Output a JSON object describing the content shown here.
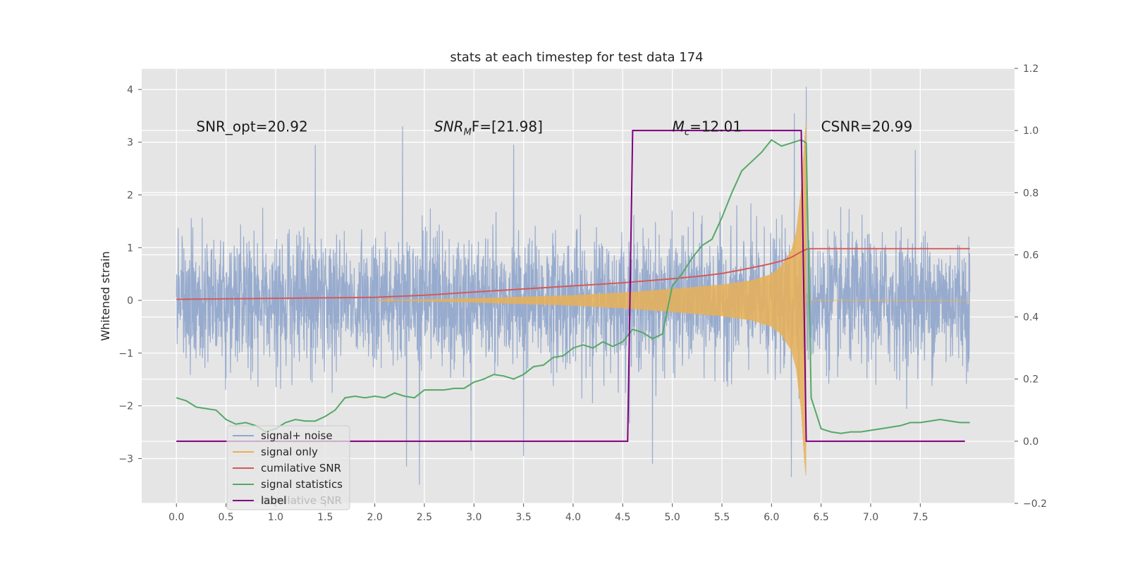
{
  "chart_data": {
    "type": "line",
    "title": "stats at each timestep for test data 174",
    "ylabel": "Whitened strain",
    "xlabel": "",
    "xlim": [
      -0.35,
      8.45
    ],
    "ylim": [
      -3.85,
      4.4
    ],
    "y2lim": [
      -0.2,
      1.2
    ],
    "x_ticks": [
      0.0,
      0.5,
      1.0,
      1.5,
      2.0,
      2.5,
      3.0,
      3.5,
      4.0,
      4.5,
      5.0,
      5.5,
      6.0,
      6.5,
      7.0,
      7.5
    ],
    "x_tick_labels": [
      "0.0",
      "0.5",
      "1.0",
      "1.5",
      "2.0",
      "2.5",
      "3.0",
      "3.5",
      "4.0",
      "4.5",
      "5.0",
      "5.5",
      "6.0",
      "6.5",
      "7.0",
      "7.5"
    ],
    "y_ticks": [
      -3,
      -2,
      -1,
      0,
      1,
      2,
      3,
      4
    ],
    "y_tick_labels": [
      "−3",
      "−2",
      "−1",
      "0",
      "1",
      "2",
      "3",
      "4"
    ],
    "y2_ticks": [
      -0.2,
      0.0,
      0.2,
      0.4,
      0.6,
      0.8,
      1.0,
      1.2
    ],
    "y2_tick_labels": [
      "−0.2",
      "0.0",
      "0.2",
      "0.4",
      "0.6",
      "0.8",
      "1.0",
      "1.2"
    ],
    "grid": true,
    "legend_placement": "lower-left",
    "annotations": [
      {
        "text": "SNR_opt=20.92",
        "x": 0.2,
        "y": 3.3
      },
      {
        "text_main": "SNR",
        "text_sub": "M",
        "text_tail": "F=[21.98]",
        "x": 2.6,
        "y": 3.3
      },
      {
        "text_main": "M",
        "text_sub": "c",
        "text_tail": "=12.01",
        "x": 5.0,
        "y": 3.3
      },
      {
        "text": "CSNR=20.99",
        "x": 6.5,
        "y": 3.3
      }
    ],
    "series": [
      {
        "name": "signal+ noise",
        "axis": "left",
        "color": "#92a8cc",
        "style": "noise",
        "x_range": [
          0.0,
          8.0
        ],
        "typical_amplitude": 1.4,
        "extremes": [
          [
            2.28,
            3.3
          ],
          [
            2.45,
            -3.5
          ],
          [
            2.32,
            -3.15
          ],
          [
            6.35,
            4.05
          ],
          [
            6.23,
            3.55
          ],
          [
            6.2,
            -3.35
          ],
          [
            4.8,
            -3.1
          ],
          [
            3.4,
            2.95
          ],
          [
            1.4,
            2.95
          ],
          [
            2.97,
            -2.85
          ],
          [
            3.5,
            -2.95
          ],
          [
            7.45,
            2.85
          ]
        ]
      },
      {
        "name": "signal only",
        "axis": "left",
        "color": "#e8b056",
        "style": "chirp",
        "x_range": [
          2.0,
          8.0
        ],
        "merger_x": 6.35,
        "envelope": [
          [
            2.0,
            0.0
          ],
          [
            3.0,
            0.04
          ],
          [
            4.0,
            0.1
          ],
          [
            4.5,
            0.15
          ],
          [
            5.0,
            0.22
          ],
          [
            5.5,
            0.3
          ],
          [
            5.8,
            0.38
          ],
          [
            6.0,
            0.5
          ],
          [
            6.1,
            0.65
          ],
          [
            6.2,
            0.95
          ],
          [
            6.25,
            1.3
          ],
          [
            6.3,
            2.1
          ],
          [
            6.33,
            3.0
          ],
          [
            6.35,
            3.4
          ]
        ]
      },
      {
        "name": "cumilative SNR",
        "axis": "right",
        "color": "#d25a5a",
        "x": [
          0.0,
          1.0,
          2.0,
          2.5,
          3.0,
          3.5,
          4.0,
          4.5,
          5.0,
          5.3,
          5.5,
          5.7,
          5.9,
          6.0,
          6.1,
          6.2,
          6.3,
          6.37,
          6.4,
          8.0
        ],
        "y": [
          0.457,
          0.46,
          0.463,
          0.47,
          0.48,
          0.49,
          0.5,
          0.51,
          0.523,
          0.532,
          0.54,
          0.552,
          0.565,
          0.572,
          0.58,
          0.592,
          0.61,
          0.62,
          0.62,
          0.62
        ]
      },
      {
        "name": "signal statistics",
        "axis": "right",
        "color": "#55a868",
        "x": [
          0.0,
          0.1,
          0.2,
          0.3,
          0.4,
          0.5,
          0.6,
          0.7,
          0.8,
          0.9,
          1.0,
          1.1,
          1.2,
          1.3,
          1.4,
          1.5,
          1.6,
          1.7,
          1.8,
          1.9,
          2.0,
          2.1,
          2.2,
          2.3,
          2.4,
          2.5,
          2.6,
          2.7,
          2.8,
          2.9,
          3.0,
          3.1,
          3.2,
          3.3,
          3.4,
          3.5,
          3.6,
          3.7,
          3.8,
          3.9,
          4.0,
          4.1,
          4.2,
          4.3,
          4.4,
          4.5,
          4.6,
          4.7,
          4.8,
          4.9,
          5.0,
          5.1,
          5.2,
          5.3,
          5.4,
          5.5,
          5.6,
          5.7,
          5.8,
          5.9,
          6.0,
          6.1,
          6.2,
          6.3,
          6.35,
          6.4,
          6.5,
          6.6,
          6.7,
          6.8,
          6.9,
          7.0,
          7.1,
          7.2,
          7.3,
          7.4,
          7.5,
          7.6,
          7.7,
          7.8,
          7.9,
          8.0
        ],
        "y": [
          0.14,
          0.13,
          0.11,
          0.105,
          0.1,
          0.07,
          0.055,
          0.06,
          0.05,
          0.03,
          0.04,
          0.06,
          0.07,
          0.065,
          0.065,
          0.08,
          0.1,
          0.14,
          0.145,
          0.14,
          0.145,
          0.14,
          0.155,
          0.145,
          0.14,
          0.165,
          0.165,
          0.165,
          0.17,
          0.17,
          0.19,
          0.2,
          0.215,
          0.21,
          0.2,
          0.215,
          0.24,
          0.245,
          0.27,
          0.275,
          0.3,
          0.31,
          0.3,
          0.32,
          0.305,
          0.32,
          0.36,
          0.35,
          0.33,
          0.345,
          0.5,
          0.54,
          0.59,
          0.63,
          0.65,
          0.72,
          0.8,
          0.87,
          0.9,
          0.93,
          0.97,
          0.95,
          0.96,
          0.97,
          0.96,
          0.14,
          0.04,
          0.03,
          0.025,
          0.03,
          0.03,
          0.035,
          0.04,
          0.045,
          0.05,
          0.06,
          0.06,
          0.065,
          0.07,
          0.065,
          0.06,
          0.06
        ]
      },
      {
        "name": "label",
        "axis": "right",
        "color": "#800080",
        "x": [
          0.0,
          4.55,
          4.6,
          6.3,
          6.35,
          7.95
        ],
        "y": [
          0.0,
          0.0,
          1.0,
          1.0,
          0.0,
          0.0
        ]
      }
    ],
    "legend_overlap_text": "cumilative SNR"
  }
}
